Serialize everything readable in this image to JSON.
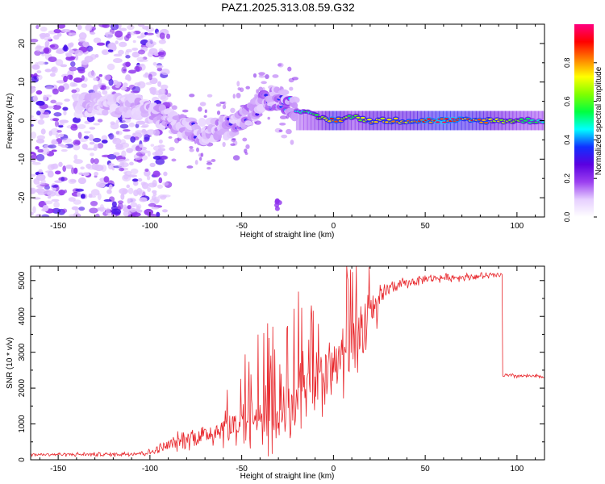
{
  "title": "PAZ1.2025.313.08.59.G32",
  "colors": {
    "snr_line": "#e8262b",
    "colormap": [
      "#ffffff",
      "#e6cfff",
      "#9b3ff0",
      "#5a00e0",
      "#1030ff",
      "#00ffff",
      "#00ff40",
      "#80ff00",
      "#ffff00",
      "#ff8000",
      "#ff0000",
      "#ff0080"
    ]
  },
  "chart_data": [
    {
      "type": "heatmap",
      "name": "spectrogram",
      "xlabel": "Height of straight line (km)",
      "ylabel": "Frequency (Hz)",
      "xlim": [
        -165,
        115
      ],
      "ylim": [
        -25,
        25
      ],
      "xticks": [
        -150,
        -100,
        -50,
        0,
        50,
        100
      ],
      "yticks": [
        -20,
        -10,
        0,
        10,
        20
      ],
      "colorbar": {
        "label": "Normalized spectral amplitude",
        "range": [
          0,
          1
        ],
        "ticks": [
          "0.0",
          "0.2",
          "0.4",
          "0.6",
          "0.8"
        ]
      },
      "ridge": [
        {
          "x": -110,
          "freq": 4,
          "amp": 0.25
        },
        {
          "x": -100,
          "freq": 3,
          "amp": 0.28
        },
        {
          "x": -90,
          "freq": 0,
          "amp": 0.3
        },
        {
          "x": -80,
          "freq": -2,
          "amp": 0.3
        },
        {
          "x": -70,
          "freq": -3,
          "amp": 0.3
        },
        {
          "x": -60,
          "freq": -2,
          "amp": 0.3
        },
        {
          "x": -50,
          "freq": 0,
          "amp": 0.32
        },
        {
          "x": -40,
          "freq": 4,
          "amp": 0.35
        },
        {
          "x": -30,
          "freq": 6,
          "amp": 0.35
        },
        {
          "x": -20,
          "freq": 3,
          "amp": 0.45
        },
        {
          "x": -10,
          "freq": 1,
          "amp": 0.6
        },
        {
          "x": 0,
          "freq": 0,
          "amp": 0.9
        },
        {
          "x": 10,
          "freq": 1,
          "amp": 0.6
        },
        {
          "x": 20,
          "freq": 0,
          "amp": 0.8
        },
        {
          "x": 40,
          "freq": 0,
          "amp": 0.8
        },
        {
          "x": 60,
          "freq": 0,
          "amp": 0.95
        },
        {
          "x": 80,
          "freq": 0,
          "amp": 0.85
        },
        {
          "x": 100,
          "freq": 0,
          "amp": 0.6
        },
        {
          "x": 115,
          "freq": 0,
          "amp": 0.5
        }
      ]
    },
    {
      "type": "line",
      "name": "snr",
      "xlabel": "Height of straight line (km)",
      "ylabel": "SNR (10 * v/v)",
      "xlim": [
        -165,
        115
      ],
      "ylim": [
        0,
        5400
      ],
      "xticks": [
        -150,
        -100,
        -50,
        0,
        50,
        100
      ],
      "yticks": [
        0,
        1000,
        2000,
        3000,
        4000,
        5000
      ],
      "envelope": [
        {
          "x": -165,
          "base": 150,
          "noise": 60
        },
        {
          "x": -120,
          "base": 150,
          "noise": 80
        },
        {
          "x": -100,
          "base": 200,
          "noise": 120
        },
        {
          "x": -90,
          "base": 400,
          "noise": 250
        },
        {
          "x": -80,
          "base": 600,
          "noise": 400
        },
        {
          "x": -70,
          "base": 700,
          "noise": 450
        },
        {
          "x": -60,
          "base": 900,
          "noise": 700
        },
        {
          "x": -50,
          "base": 1000,
          "noise": 900
        },
        {
          "x": -40,
          "base": 1200,
          "noise": 1200
        },
        {
          "x": -30,
          "base": 1400,
          "noise": 1400
        },
        {
          "x": -20,
          "base": 1800,
          "noise": 1600
        },
        {
          "x": -10,
          "base": 2100,
          "noise": 1400
        },
        {
          "x": 0,
          "base": 2500,
          "noise": 1200
        },
        {
          "x": 10,
          "base": 3200,
          "noise": 1300
        },
        {
          "x": 20,
          "base": 3900,
          "noise": 1000
        },
        {
          "x": 30,
          "base": 4800,
          "noise": 250
        },
        {
          "x": 50,
          "base": 5050,
          "noise": 150
        },
        {
          "x": 92,
          "base": 5150,
          "noise": 120
        },
        {
          "x": 93,
          "base": 2350,
          "noise": 80
        },
        {
          "x": 115,
          "base": 2320,
          "noise": 70
        }
      ]
    }
  ]
}
